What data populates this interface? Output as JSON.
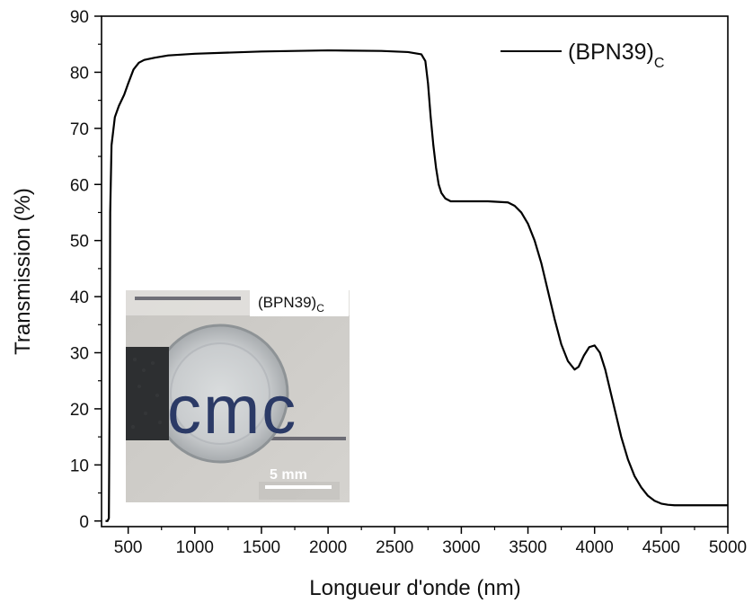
{
  "chart_data": {
    "type": "line",
    "xlabel": "Longueur d'onde (nm)",
    "ylabel": "Transmission (%)",
    "xlim": [
      300,
      5000
    ],
    "ylim": [
      -1,
      90
    ],
    "x_ticks": [
      500,
      1000,
      1500,
      2000,
      2500,
      3000,
      3500,
      4000,
      4500,
      5000
    ],
    "y_ticks": [
      0,
      10,
      20,
      30,
      40,
      50,
      60,
      70,
      80,
      90
    ],
    "grid": false,
    "legend_position": "top-right",
    "series": [
      {
        "name": "(BPN39)",
        "name_subscript": "C",
        "color": "#000000",
        "x": [
          330,
          345,
          355,
          360,
          365,
          375,
          400,
          430,
          470,
          500,
          540,
          580,
          620,
          700,
          800,
          1000,
          1500,
          2000,
          2400,
          2600,
          2700,
          2730,
          2750,
          2770,
          2790,
          2810,
          2830,
          2850,
          2880,
          2920,
          3000,
          3200,
          3350,
          3400,
          3450,
          3500,
          3550,
          3600,
          3650,
          3700,
          3750,
          3800,
          3850,
          3880,
          3920,
          3960,
          4000,
          4040,
          4080,
          4120,
          4160,
          4200,
          4250,
          4300,
          4350,
          4400,
          4450,
          4500,
          4550,
          4600,
          4700,
          4800,
          4900,
          5000
        ],
        "y": [
          0,
          0,
          0.5,
          20,
          55,
          67,
          72,
          74,
          76,
          78,
          80.5,
          81.7,
          82.2,
          82.6,
          83.0,
          83.3,
          83.7,
          83.9,
          83.8,
          83.6,
          83.2,
          82,
          78,
          72,
          67,
          63,
          60,
          58.5,
          57.5,
          57.0,
          57.0,
          57.0,
          56.8,
          56.2,
          55,
          53,
          50,
          46,
          41,
          36,
          31.5,
          28.5,
          27,
          27.5,
          29.5,
          31.0,
          31.3,
          30,
          27,
          23,
          19,
          15,
          11,
          8,
          6,
          4.5,
          3.6,
          3.1,
          2.9,
          2.8,
          2.8,
          2.8,
          2.8,
          2.8
        ]
      }
    ],
    "inset": {
      "label": "(BPN39)",
      "label_subscript": "C",
      "scale_bar_label": "5 mm",
      "photo_logo_text": "cmc"
    }
  }
}
